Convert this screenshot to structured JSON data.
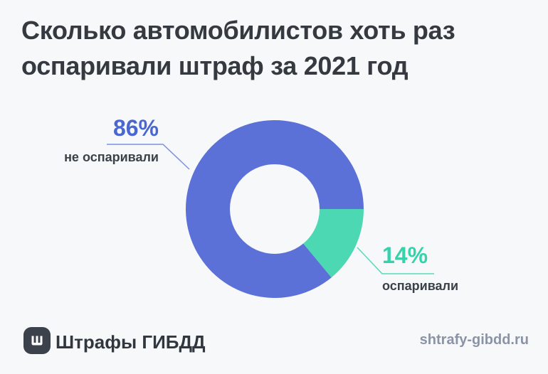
{
  "title": {
    "text": "Сколько автомобилистов хоть раз оспаривали штраф за 2021 год",
    "lines": [
      "Сколько автомобилистов хоть раз",
      "оспаривали штраф за 2021 год"
    ]
  },
  "chart_data": {
    "type": "pie",
    "subtype": "donut",
    "title": "Сколько автомобилистов хоть раз оспаривали штраф за 2021 год",
    "unit": "%",
    "start_angle_deg": 0,
    "direction": "clockwise",
    "inner_radius_ratio": 0.5,
    "segments": [
      {
        "label": "оспаривали",
        "value": 14,
        "color": "#4dd8b4",
        "label_color": "#35d2ab",
        "leader_color": "#55dab8"
      },
      {
        "label": "не оспаривали",
        "value": 86,
        "color": "#5b71d7",
        "label_color": "#4b66d1",
        "leader_color": "#7d90e2"
      }
    ]
  },
  "labels": {
    "major": {
      "pct": "86%",
      "caption": "не оспаривали"
    },
    "minor": {
      "pct": "14%",
      "caption": "оспаривали"
    }
  },
  "footer": {
    "brand": "Штрафы ГИБДД",
    "url": "shtrafy-gibdd.ru"
  },
  "colors": {
    "background": "#f7f8fa",
    "title": "#343a40",
    "caption": "#3a4148",
    "brand": "#31373e",
    "url": "#8a94a6",
    "logo_bg": "#3b424c"
  }
}
